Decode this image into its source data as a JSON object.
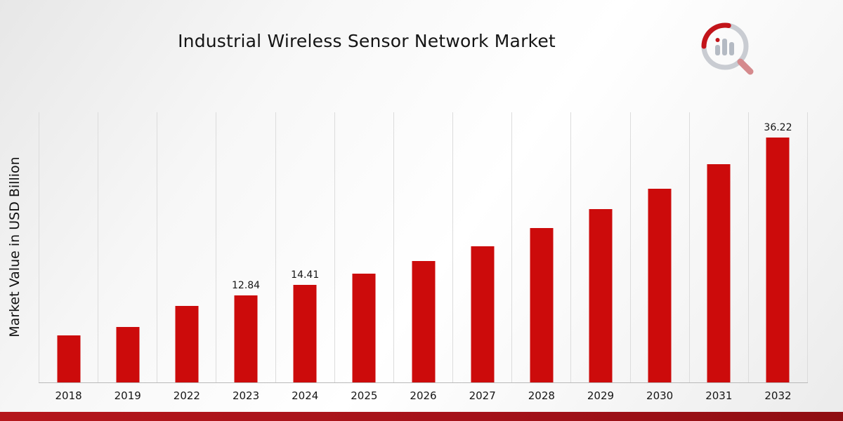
{
  "header": {
    "title": "Industrial Wireless Sensor Network Market"
  },
  "chart_data": {
    "type": "bar",
    "title": "Industrial Wireless Sensor Network Market",
    "xlabel": "",
    "ylabel": "Market Value in USD Billion",
    "categories": [
      "2018",
      "2019",
      "2022",
      "2023",
      "2024",
      "2025",
      "2026",
      "2027",
      "2028",
      "2029",
      "2030",
      "2031",
      "2032"
    ],
    "values": [
      7.0,
      8.2,
      11.3,
      12.84,
      14.41,
      16.1,
      18.0,
      20.2,
      22.9,
      25.7,
      28.7,
      32.3,
      36.22
    ],
    "labeled_points": {
      "2023": "12.84",
      "2024": "14.41",
      "2032": "36.22"
    },
    "bar_color": "#cc0b0b",
    "grid": "vertical-lines",
    "legend": "none",
    "ylim": [
      0,
      40
    ]
  },
  "footer": {
    "ribbon_color": "#a5121a"
  }
}
